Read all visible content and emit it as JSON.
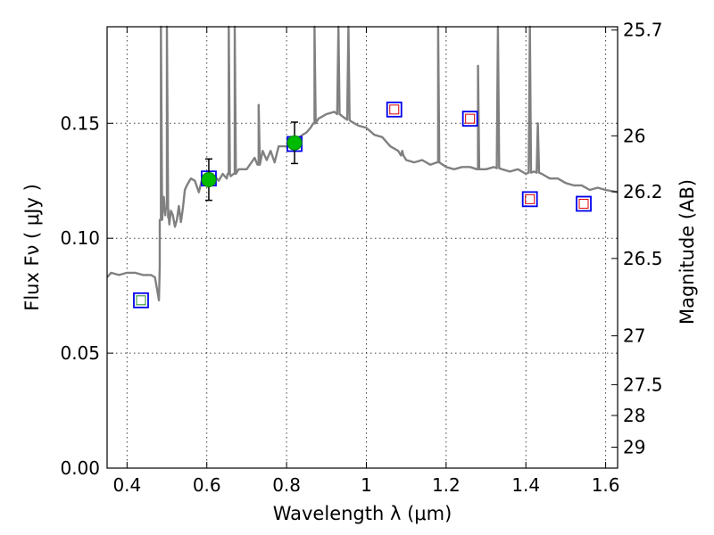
{
  "chart_data": {
    "type": "line",
    "xlabel": "Wavelength  λ (μm)",
    "ylabel": "Flux  Fν  ( μJy )",
    "y2label": "Magnitude (AB)",
    "xlim": [
      0.35,
      1.63
    ],
    "ylim": [
      0.0,
      0.192
    ],
    "grid": true,
    "x_ticks": [
      0.4,
      0.6,
      0.8,
      1.0,
      1.2,
      1.4,
      1.6
    ],
    "x_tick_labels": [
      "0.4",
      "0.6",
      "0.8",
      "1",
      "1.2",
      "1.4",
      "1.6"
    ],
    "y_ticks": [
      0.0,
      0.05,
      0.1,
      0.15
    ],
    "y_tick_labels": [
      "0.00",
      "0.05",
      "0.10",
      "0.15"
    ],
    "magnitude_ticks": [
      "25.7",
      "26",
      "26.2",
      "26.5",
      "27",
      "27.5",
      "28",
      "29"
    ],
    "colors": {
      "spectrum": "#808080",
      "measured_marker": "#00bb00",
      "square_edge": "#0000ee",
      "model_green": "#228b22",
      "model_red": "#dd0000"
    },
    "series": [
      {
        "type": "line",
        "x": [
          0.35,
          0.36,
          0.38,
          0.4,
          0.42,
          0.44,
          0.46,
          0.47,
          0.475,
          0.48,
          0.482,
          0.485,
          0.49,
          0.492,
          0.496,
          0.5,
          0.503,
          0.506,
          0.51,
          0.515,
          0.52,
          0.525,
          0.53,
          0.535,
          0.54,
          0.545,
          0.55,
          0.56,
          0.57,
          0.58,
          0.59,
          0.6,
          0.61,
          0.62,
          0.63,
          0.64,
          0.645,
          0.65,
          0.655,
          0.66,
          0.67,
          0.68,
          0.7,
          0.72,
          0.73,
          0.74,
          0.75,
          0.76,
          0.77,
          0.78,
          0.8,
          0.82,
          0.84,
          0.85,
          0.86,
          0.87,
          0.88,
          0.9,
          0.92,
          0.94,
          0.96,
          0.98,
          1.0,
          1.02,
          1.04,
          1.06,
          1.08,
          1.1,
          1.12,
          1.14,
          1.16,
          1.18,
          1.2,
          1.22,
          1.24,
          1.26,
          1.28,
          1.3,
          1.32,
          1.34,
          1.36,
          1.38,
          1.4,
          1.42,
          1.44,
          1.46,
          1.48,
          1.5,
          1.52,
          1.54,
          1.56,
          1.58,
          1.6,
          1.63
        ],
        "y": [
          0.083,
          0.085,
          0.084,
          0.085,
          0.085,
          0.084,
          0.084,
          0.083,
          0.078,
          0.073,
          0.088,
          0.108,
          0.113,
          0.118,
          0.11,
          0.113,
          0.109,
          0.106,
          0.112,
          0.11,
          0.105,
          0.108,
          0.114,
          0.107,
          0.113,
          0.121,
          0.123,
          0.126,
          0.125,
          0.12,
          0.127,
          0.126,
          0.124,
          0.127,
          0.125,
          0.128,
          0.127,
          0.126,
          0.128,
          0.127,
          0.128,
          0.13,
          0.13,
          0.135,
          0.132,
          0.138,
          0.134,
          0.138,
          0.133,
          0.14,
          0.14,
          0.142,
          0.145,
          0.146,
          0.148,
          0.15,
          0.152,
          0.154,
          0.155,
          0.153,
          0.151,
          0.149,
          0.148,
          0.145,
          0.144,
          0.14,
          0.138,
          0.134,
          0.133,
          0.134,
          0.132,
          0.133,
          0.131,
          0.13,
          0.131,
          0.131,
          0.13,
          0.13,
          0.131,
          0.13,
          0.129,
          0.13,
          0.128,
          0.129,
          0.128,
          0.126,
          0.126,
          0.124,
          0.123,
          0.123,
          0.121,
          0.122,
          0.121,
          0.12
        ],
        "emission_lines": [
          {
            "x": 0.485,
            "peak": 0.192
          },
          {
            "x": 0.5,
            "peak": 0.192
          },
          {
            "x": 0.655,
            "peak": 0.192
          },
          {
            "x": 0.67,
            "peak": 0.192
          },
          {
            "x": 0.73,
            "peak": 0.158
          },
          {
            "x": 0.87,
            "peak": 0.192
          },
          {
            "x": 0.93,
            "peak": 0.192
          },
          {
            "x": 0.955,
            "peak": 0.192
          },
          {
            "x": 1.09,
            "peak": 0.138
          },
          {
            "x": 1.18,
            "peak": 0.192
          },
          {
            "x": 1.28,
            "peak": 0.175
          },
          {
            "x": 1.33,
            "peak": 0.192
          },
          {
            "x": 1.41,
            "peak": 0.192
          },
          {
            "x": 1.43,
            "peak": 0.15
          }
        ]
      },
      {
        "type": "scatter",
        "marker": "filled-circle",
        "x": [
          0.605,
          0.82
        ],
        "y": [
          0.1255,
          0.1415
        ],
        "yerr": [
          0.009,
          0.009
        ]
      },
      {
        "type": "scatter",
        "marker": "open-square",
        "x": [
          0.435,
          0.605,
          0.82,
          1.07,
          1.26,
          1.41,
          1.545
        ],
        "y": [
          0.073,
          0.126,
          0.141,
          0.156,
          0.152,
          0.117,
          0.115
        ],
        "inner_color": [
          "green",
          "green",
          "green",
          "red",
          "red",
          "red",
          "red"
        ]
      }
    ]
  }
}
